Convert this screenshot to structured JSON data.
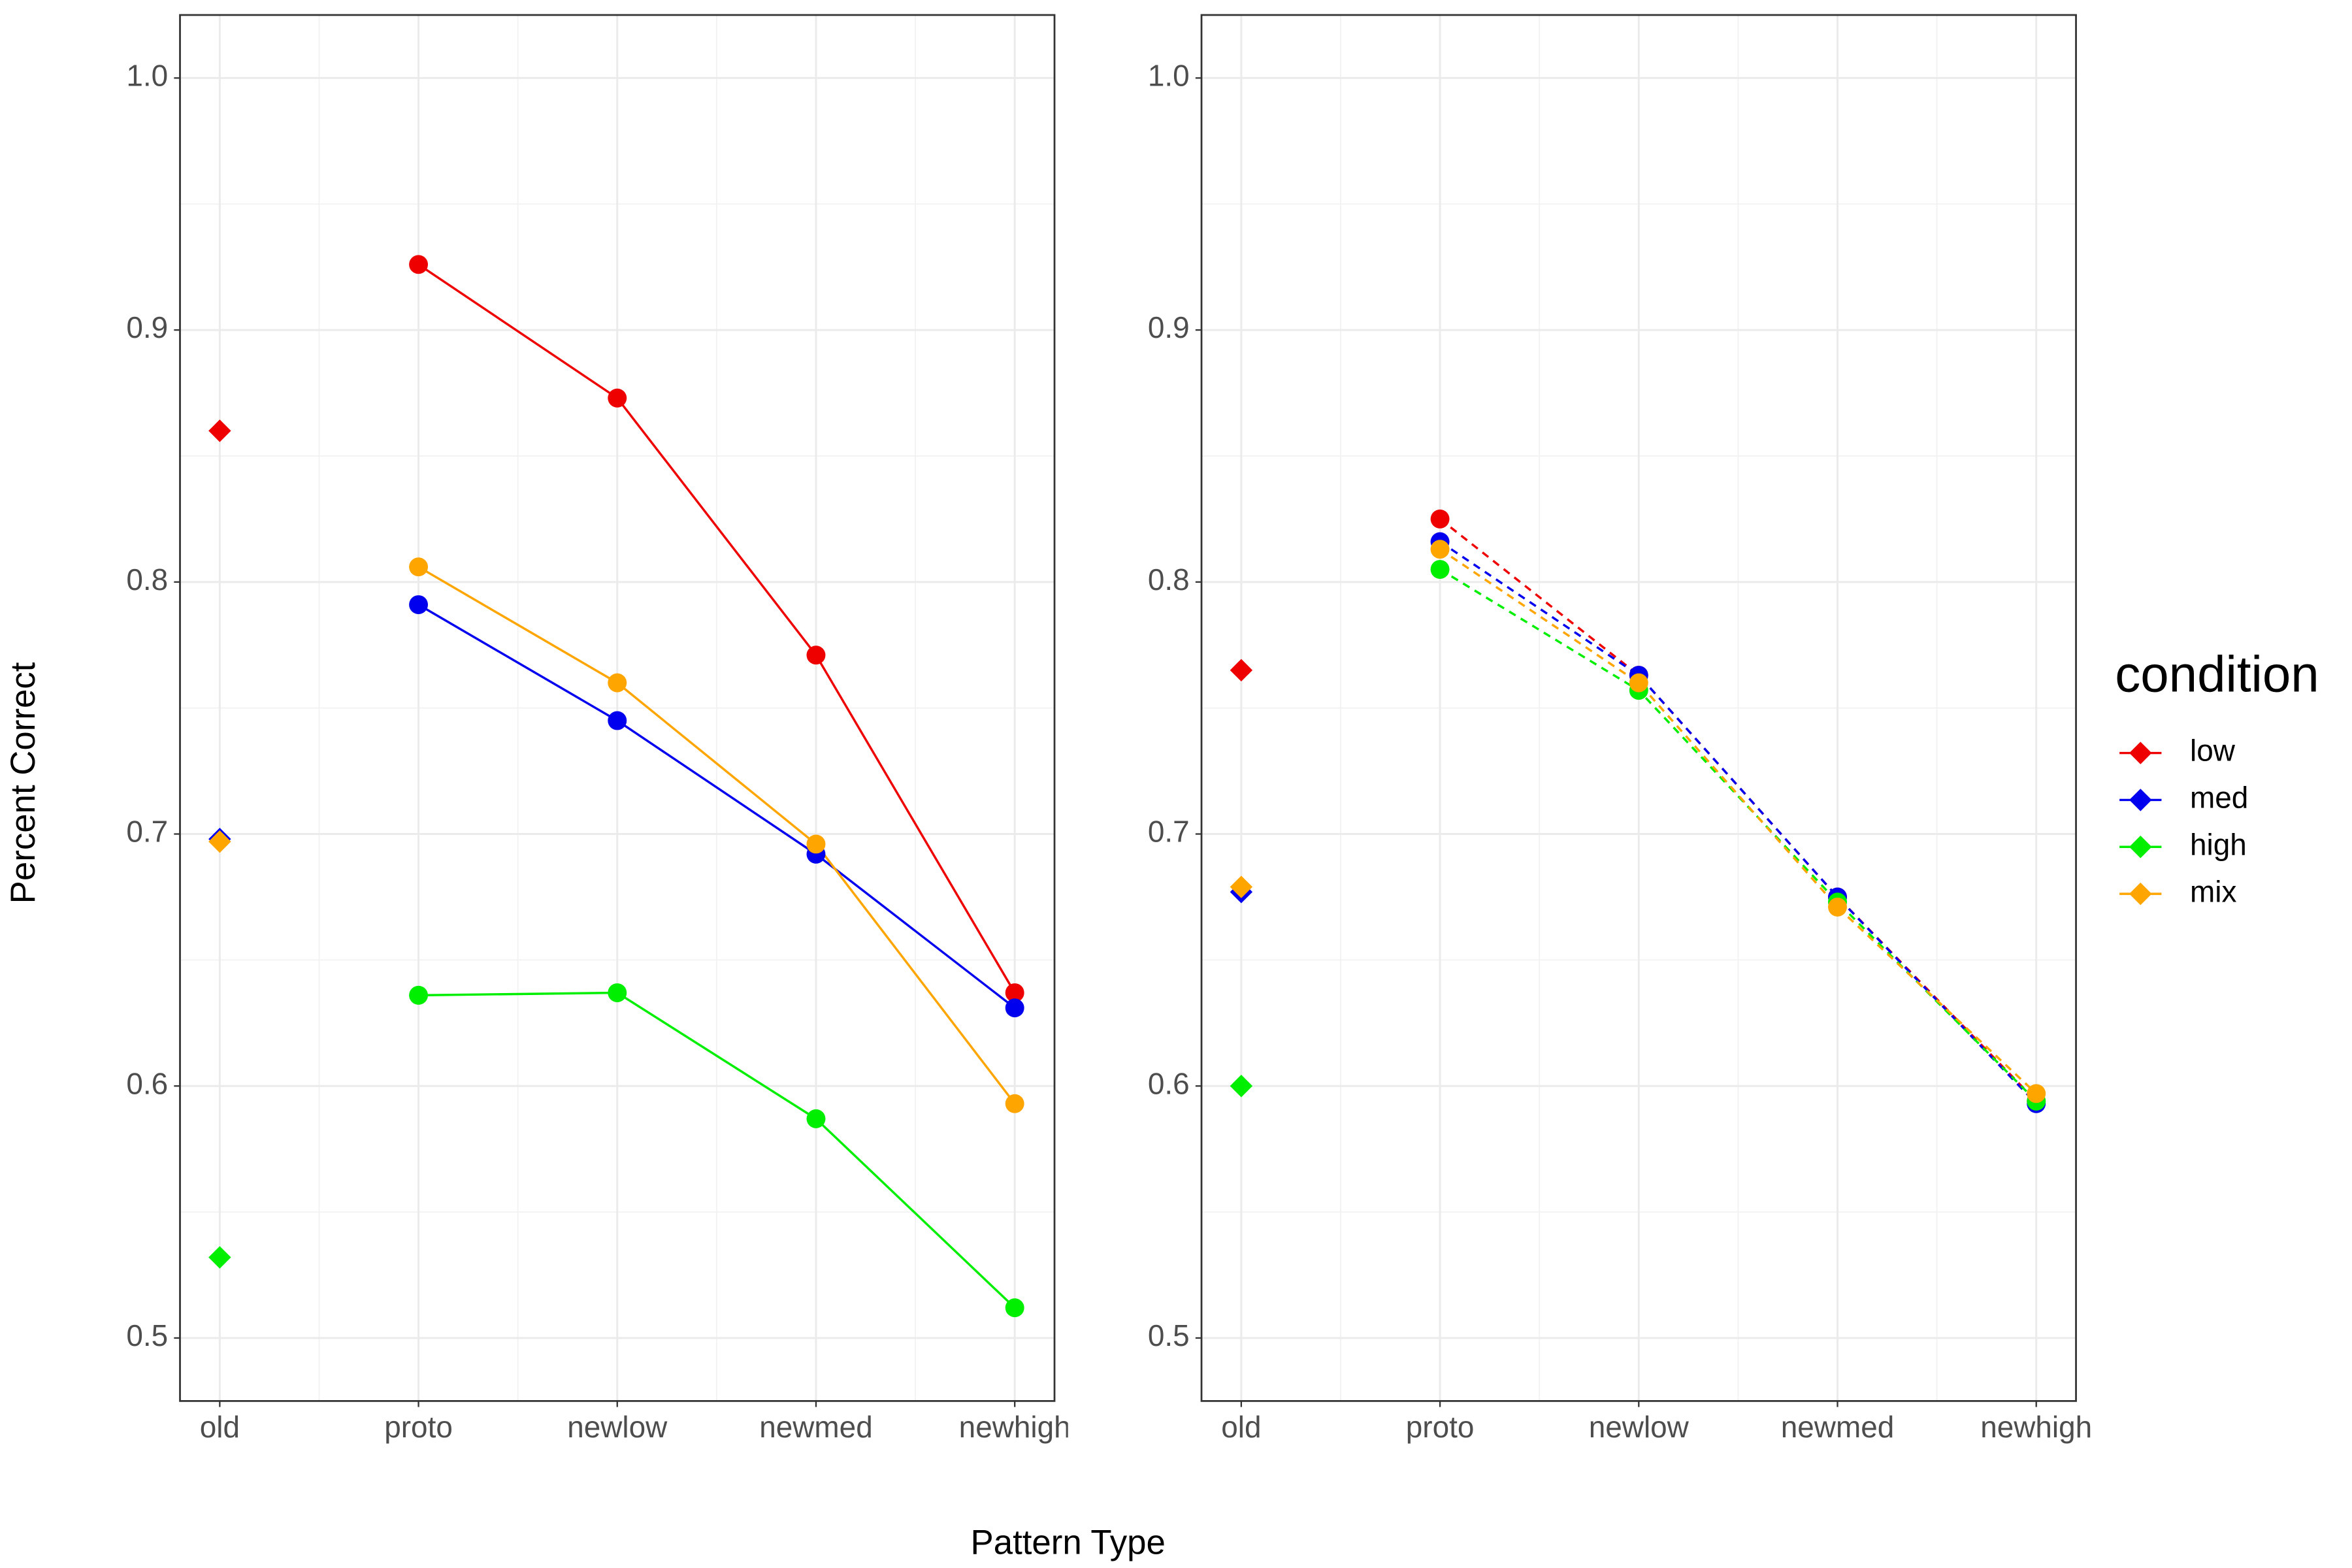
{
  "chart_data": [
    {
      "type": "line",
      "linestyle": "solid",
      "categories": [
        "old",
        "proto",
        "newlow",
        "newmed",
        "newhigh"
      ],
      "ylim": [
        0.475,
        1.025
      ],
      "yticks": [
        0.5,
        0.6,
        0.7,
        0.8,
        0.9,
        {
          "value": 1,
          "label": "1.0"
        }
      ],
      "grid": true,
      "series": [
        {
          "name": "low",
          "color": "#ee0000",
          "values": [
            0.86,
            0.926,
            0.873,
            0.771,
            0.637
          ]
        },
        {
          "name": "med",
          "color": "#0000ee",
          "values": [
            0.698,
            0.791,
            0.745,
            0.692,
            0.631
          ]
        },
        {
          "name": "high",
          "color": "#00ee00",
          "values": [
            0.532,
            0.636,
            0.637,
            0.587,
            0.512
          ]
        },
        {
          "name": "mix",
          "color": "#ffa500",
          "values": [
            0.697,
            0.806,
            0.76,
            0.696,
            0.593
          ]
        }
      ]
    },
    {
      "type": "line",
      "linestyle": "dashed",
      "categories": [
        "old",
        "proto",
        "newlow",
        "newmed",
        "newhigh"
      ],
      "ylim": [
        0.475,
        1.025
      ],
      "yticks": [
        0.5,
        0.6,
        0.7,
        0.8,
        0.9,
        {
          "value": 1,
          "label": "1.0"
        }
      ],
      "grid": true,
      "series": [
        {
          "color": "#ee0000",
          "values": [
            0.765,
            0.825,
            0.763,
            0.675,
            0.594
          ]
        },
        {
          "color": "#0000ee",
          "values": [
            0.677,
            0.816,
            0.763,
            0.675,
            0.593
          ]
        },
        {
          "color": "#00ee00",
          "values": [
            0.6,
            0.805,
            0.757,
            0.673,
            0.594
          ]
        },
        {
          "color": "#ffa500",
          "values": [
            0.679,
            0.813,
            0.76,
            0.671,
            0.597
          ]
        }
      ]
    }
  ],
  "x_label": "Pattern Type",
  "y_label": "Percent Correct",
  "legend": {
    "title": "condition",
    "position": "right"
  }
}
